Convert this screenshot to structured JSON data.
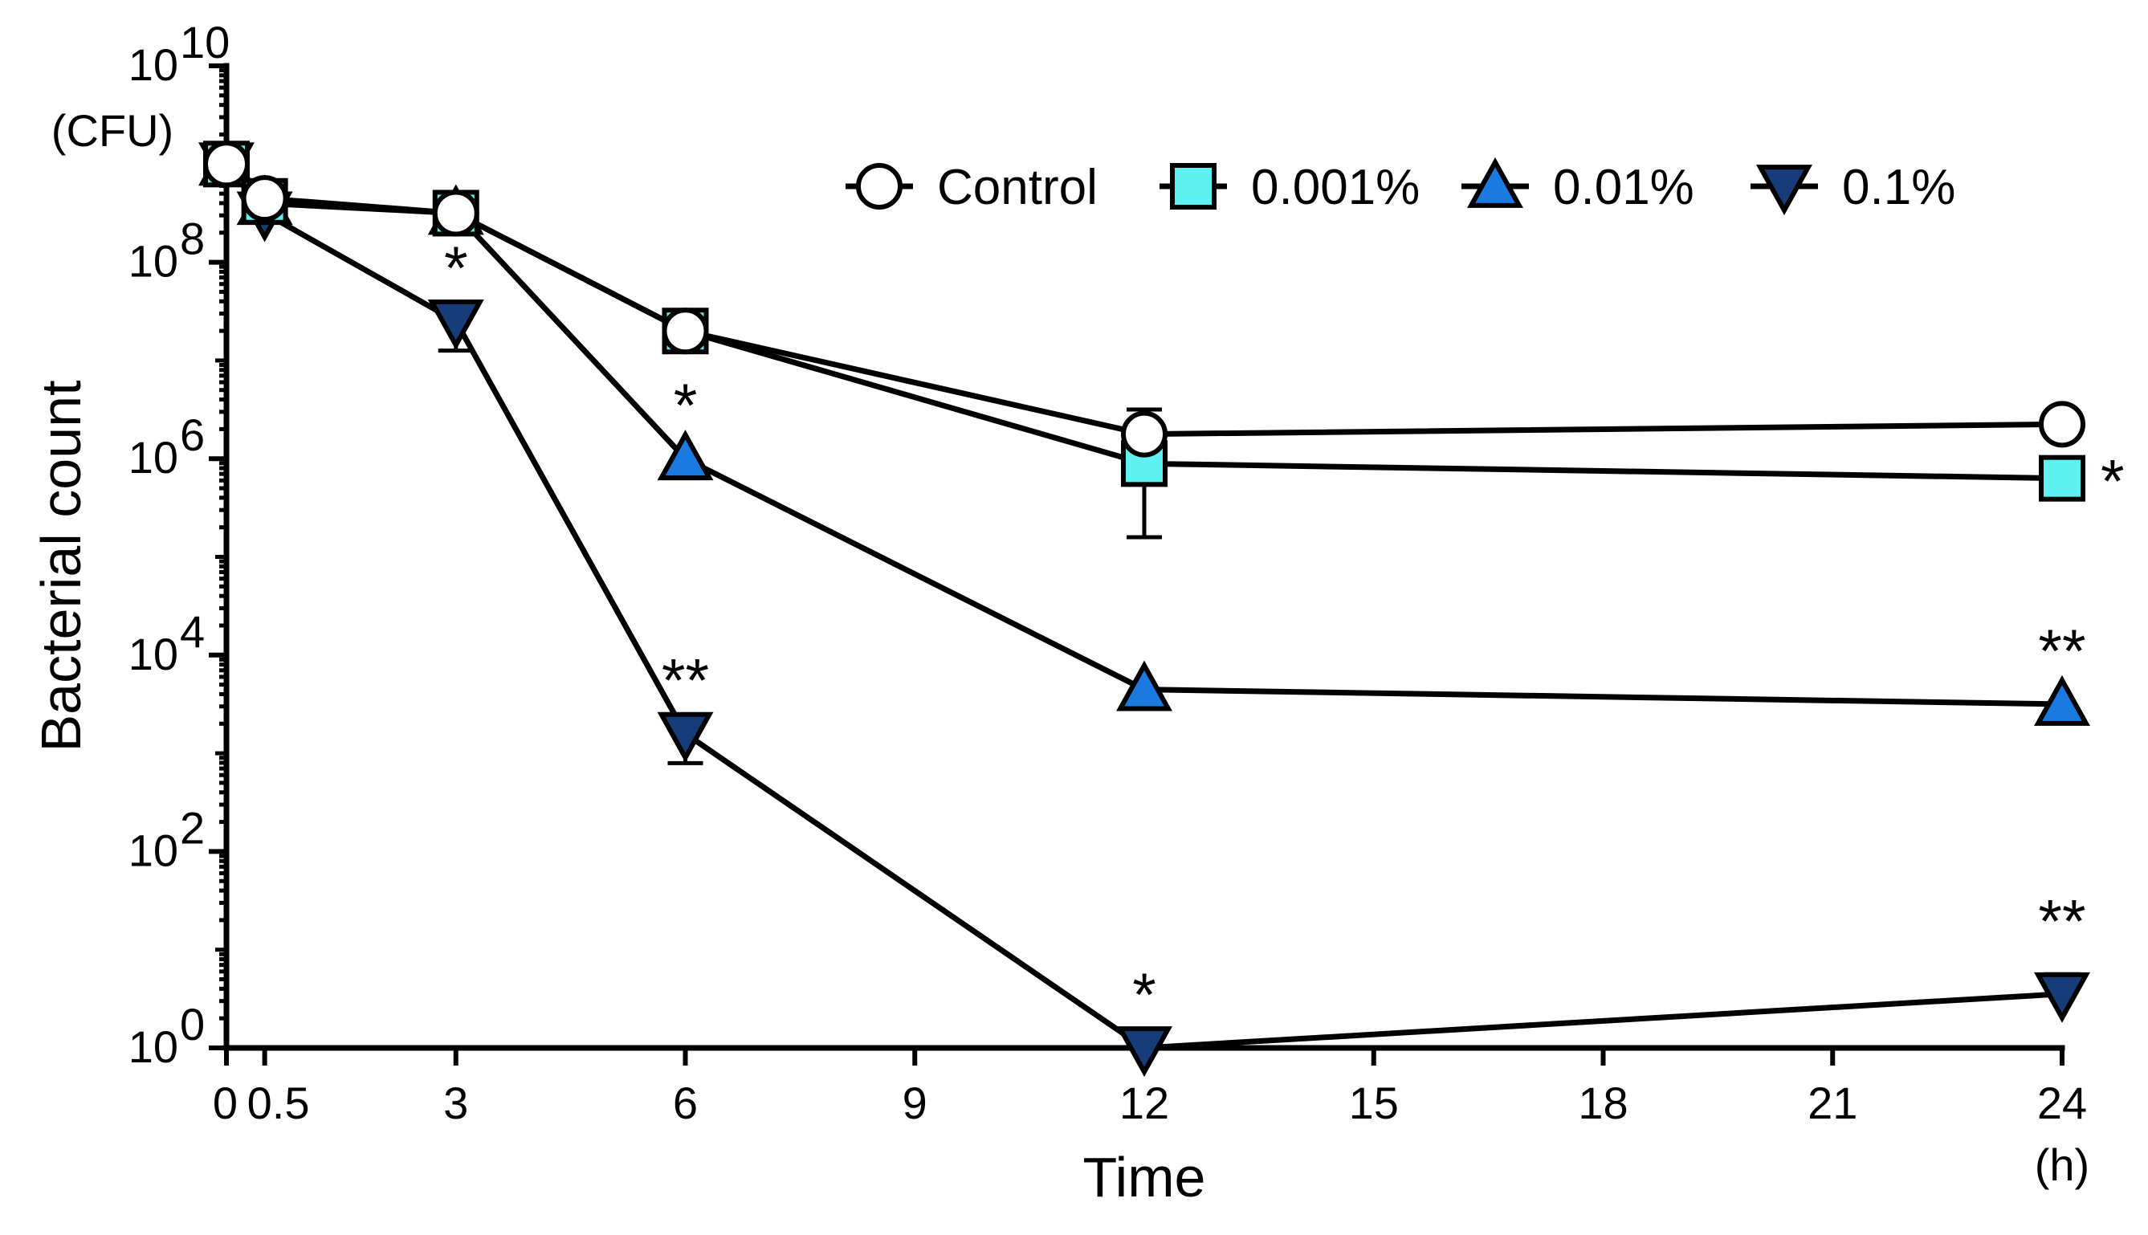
{
  "chart_data": {
    "type": "line",
    "xlabel": "Time",
    "x_unit": "(h)",
    "ylabel": "Bacterial count",
    "y_unit": "(CFU)",
    "y_scale": "log10",
    "xlim": [
      0,
      24
    ],
    "ylim_exponent": [
      0,
      10
    ],
    "x_ticks": [
      0,
      0.5,
      3,
      6,
      9,
      12,
      15,
      18,
      21,
      24
    ],
    "x_tick_labels": [
      "0",
      "0.5",
      "3",
      "6",
      "9",
      "12",
      "15",
      "18",
      "21",
      "24"
    ],
    "y_ticks_exponent": [
      0,
      2,
      4,
      6,
      8,
      10
    ],
    "y_tick_base": "10",
    "y_tick_exponent_labels": [
      "0",
      "2",
      "4",
      "6",
      "8",
      "10"
    ],
    "legend_position": "top-right",
    "series": [
      {
        "name": "Control",
        "marker": "circle",
        "color": "#ffffff",
        "x": [
          0,
          0.5,
          3,
          6,
          12,
          24
        ],
        "log_y": [
          9.0,
          8.65,
          8.5,
          7.3,
          6.25,
          6.35
        ],
        "err_up": [
          0,
          0,
          0,
          0,
          0,
          0
        ],
        "sig": [
          "",
          "",
          "",
          "",
          "",
          ""
        ]
      },
      {
        "name": "0.001%",
        "marker": "square",
        "color": "#5ff0f0",
        "x": [
          0,
          0.5,
          3,
          6,
          12,
          24
        ],
        "log_y": [
          9.0,
          8.62,
          8.5,
          7.3,
          5.95,
          5.8
        ],
        "err_up": [
          0,
          0,
          0,
          0,
          0.55,
          0
        ],
        "err_down": [
          0,
          0,
          0,
          0,
          0.75,
          0
        ],
        "sig": [
          "",
          "",
          "",
          "",
          "",
          "*"
        ]
      },
      {
        "name": "0.01%",
        "marker": "triangle-up",
        "color": "#1a7ae0",
        "x": [
          0,
          0.5,
          3,
          6,
          12,
          24
        ],
        "log_y": [
          9.0,
          8.6,
          8.5,
          6.0,
          3.65,
          3.5
        ],
        "err_up": [
          0,
          0,
          0,
          0,
          0,
          0
        ],
        "sig": [
          "",
          "",
          "",
          "*",
          "",
          "**"
        ]
      },
      {
        "name": "0.1%",
        "marker": "triangle-down",
        "color": "#163d7a",
        "x": [
          0,
          0.5,
          3,
          6,
          12,
          24
        ],
        "log_y": [
          9.0,
          8.5,
          7.4,
          3.2,
          0.0,
          0.55
        ],
        "err_up": [
          0,
          0,
          0,
          0,
          0,
          0.2
        ],
        "err_down": [
          0,
          0,
          0.3,
          0.3,
          0,
          0
        ],
        "sig": [
          "",
          "",
          "*",
          "**",
          "*",
          "**"
        ]
      }
    ]
  }
}
